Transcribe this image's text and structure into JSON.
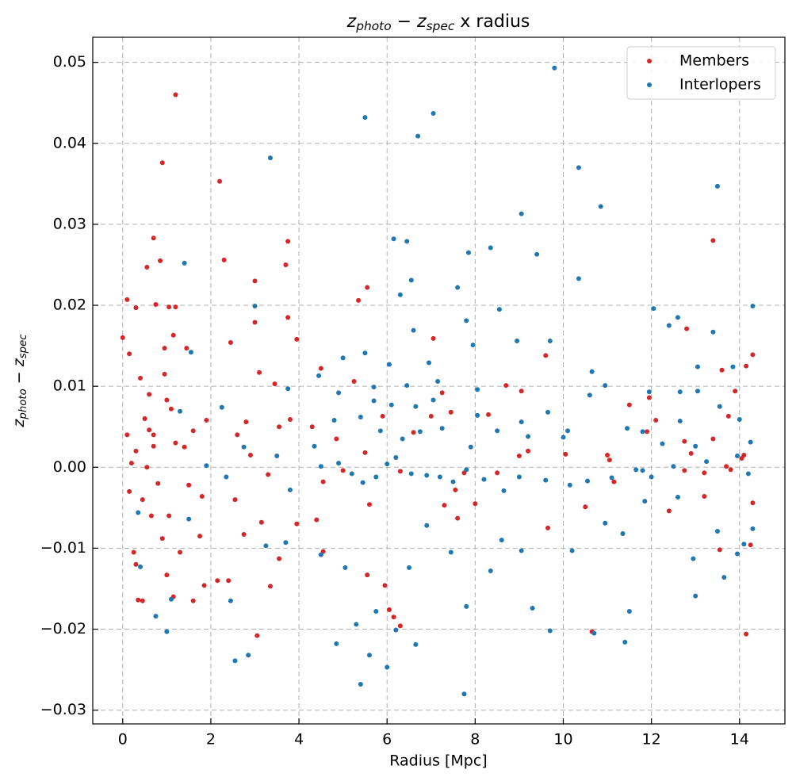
{
  "chart_data": {
    "type": "scatter",
    "title": [
      "z",
      "photo",
      " − ",
      "z",
      "spec",
      " x radius"
    ],
    "x_label": "Radius [Mpc]",
    "y_label": [
      "z",
      "photo",
      " − ",
      "z",
      "spec"
    ],
    "xlim": [
      -0.68,
      15.03
    ],
    "ylim": [
      -0.0317,
      0.0531
    ],
    "xticks": [
      0,
      2,
      4,
      6,
      8,
      10,
      12,
      14
    ],
    "yticks": [
      {
        "value": -0.03,
        "label": "−0.03"
      },
      {
        "value": -0.02,
        "label": "−0.02"
      },
      {
        "value": -0.01,
        "label": "−0.01"
      },
      {
        "value": 0,
        "label": "0.00"
      },
      0.01,
      0.02,
      0.03,
      0.04,
      0.05
    ],
    "grid": true,
    "legend": "upper right",
    "series": [
      {
        "name": "Members",
        "color": "#d62728",
        "x": [
          0.0,
          0.1,
          0.15,
          1.2,
          0.9,
          2.2,
          0.7,
          0.85,
          2.3,
          0.55,
          3.0,
          3.75,
          3.7,
          1.2,
          1.05,
          0.3,
          0.75,
          5.35,
          5.55,
          3.75,
          3.0,
          3.95,
          0.95,
          1.15,
          1.45,
          2.45,
          7.05,
          13.4,
          12.8,
          13.6,
          14.15,
          14.3,
          9.05,
          8.7,
          11.5,
          12.75,
          9.6,
          0.4,
          0.6,
          0.5,
          0.7,
          0.3,
          0.55,
          0.8,
          0.45,
          0.65,
          0.9,
          0.25,
          0.35,
          0.45,
          0.3,
          1.0,
          1.15,
          1.05,
          1.3,
          1.2,
          1.4,
          1.6,
          1.5,
          1.75,
          1.85,
          1.6,
          1.9,
          1.8,
          1.0,
          0.95,
          0.1,
          0.2,
          0.15,
          0.7,
          0.6,
          1.1,
          2.6,
          2.8,
          2.9,
          2.55,
          2.4,
          2.75,
          3.05,
          2.15,
          3.1,
          3.3,
          3.45,
          3.55,
          3.8,
          3.95,
          3.35,
          3.55,
          3.15,
          4.5,
          4.3,
          4.55,
          4.4,
          4.55,
          4.85,
          5.0,
          5.25,
          5.5,
          5.6,
          5.55,
          5.95,
          6.05,
          6.15,
          6.3,
          5.9,
          6.6,
          6.3,
          7.0,
          7.25,
          7.45,
          7.55,
          7.3,
          7.6,
          7.75,
          8.0,
          8.3,
          8.5,
          9.0,
          9.2,
          9.65,
          10.05,
          10.5,
          10.65,
          11.0,
          11.15,
          11.9,
          12.1,
          11.95,
          12.4,
          12.75,
          13.2,
          13.4,
          13.55,
          13.7,
          13.8,
          14.05,
          14.15,
          14.25,
          14.3,
          13.9,
          13.75,
          14.1,
          13.2,
          12.9,
          11.05
        ],
        "values": [
          0.016,
          0.0207,
          0.014,
          0.046,
          0.0376,
          0.0353,
          0.0283,
          0.0255,
          0.0256,
          0.0247,
          0.023,
          0.0279,
          0.025,
          0.0198,
          0.0198,
          0.0197,
          0.0201,
          0.0206,
          0.0222,
          0.0185,
          0.0179,
          0.0158,
          0.0147,
          0.0163,
          0.0147,
          0.0154,
          0.0159,
          0.028,
          0.0171,
          0.012,
          0.0125,
          0.0139,
          0.0094,
          0.0101,
          0.0077,
          0.0032,
          0.0138,
          0.011,
          0.009,
          0.006,
          0.004,
          0.002,
          0.0,
          -0.002,
          -0.004,
          -0.006,
          -0.0088,
          -0.0105,
          -0.0164,
          -0.0165,
          -0.012,
          -0.0133,
          -0.016,
          -0.006,
          -0.0105,
          0.003,
          0.0025,
          0.0045,
          -0.0022,
          -0.0085,
          -0.0146,
          -0.0165,
          0.0058,
          -0.0036,
          0.0083,
          0.0115,
          0.004,
          0.0005,
          -0.003,
          0.0026,
          0.0046,
          0.0072,
          0.004,
          0.0056,
          0.0015,
          -0.004,
          -0.014,
          -0.0083,
          -0.0208,
          -0.014,
          0.0117,
          -0.0009,
          0.0103,
          0.005,
          0.0059,
          -0.007,
          -0.0147,
          -0.0113,
          -0.0068,
          0.0122,
          0.005,
          -0.0018,
          -0.0065,
          -0.0104,
          0.0035,
          -0.0004,
          0.0106,
          0.0018,
          -0.0046,
          -0.0133,
          -0.0146,
          -0.0176,
          -0.0185,
          -0.0196,
          0.0063,
          0.0043,
          -0.0005,
          0.0063,
          0.0092,
          0.0068,
          -0.0028,
          -0.0047,
          -0.0063,
          -0.0007,
          -0.0045,
          0.0065,
          -0.0007,
          0.0014,
          0.002,
          -0.0075,
          0.0016,
          -0.0049,
          -0.0203,
          0.0015,
          -0.0018,
          0.0044,
          0.0058,
          0.0086,
          -0.0054,
          -0.0004,
          -0.0036,
          0.0035,
          -0.0102,
          0.0001,
          -0.0003,
          0.0011,
          -0.0206,
          -0.0096,
          -0.0044,
          0.0094,
          0.0063,
          0.0015,
          -0.0007,
          0.0017,
          0.0009
        ]
      },
      {
        "name": "Interlopers",
        "color": "#1f77b4",
        "x": [
          9.8,
          5.5,
          7.05,
          6.7,
          3.35,
          10.35,
          13.5,
          10.85,
          9.05,
          6.15,
          6.45,
          9.4,
          8.35,
          7.85,
          1.4,
          10.35,
          6.55,
          7.6,
          6.3,
          12.05,
          14.3,
          3.0,
          8.55,
          12.6,
          12.4,
          6.6,
          9.7,
          8.95,
          7.95,
          13.4,
          7.8,
          1.55,
          5.5,
          5.0,
          13.05,
          13.85,
          10.65,
          6.95,
          6.05,
          4.45,
          7.15,
          5.7,
          3.75,
          10.95,
          6.45,
          8.05,
          11.95,
          13.05,
          12.65,
          4.9,
          5.7,
          7.05,
          8.05,
          6.65,
          6.1,
          9.05,
          9.65,
          10.6,
          13.55,
          14.0,
          2.25,
          1.3,
          4.35,
          4.8,
          5.4,
          5.85,
          6.35,
          6.75,
          7.25,
          7.9,
          8.5,
          9.2,
          10.0,
          10.1,
          11.45,
          11.8,
          12.65,
          13.0,
          14.25,
          4.5,
          4.9,
          5.2,
          5.45,
          5.75,
          6.0,
          6.2,
          6.55,
          6.9,
          7.2,
          7.5,
          7.8,
          8.2,
          8.65,
          9.0,
          9.6,
          10.15,
          10.55,
          11.1,
          11.65,
          12.0,
          12.5,
          13.25,
          13.95,
          14.2,
          3.8,
          3.5,
          2.75,
          2.35,
          1.9,
          0.35,
          0.4,
          0.75,
          1.0,
          1.1,
          1.5,
          2.45,
          2.55,
          2.85,
          3.25,
          3.7,
          4.5,
          4.85,
          5.05,
          5.3,
          5.4,
          5.6,
          5.75,
          6.0,
          6.2,
          6.5,
          6.65,
          6.9,
          7.45,
          7.75,
          7.8,
          8.35,
          8.6,
          9.05,
          9.3,
          9.7,
          10.2,
          10.7,
          11.4,
          11.5,
          11.35,
          10.95,
          11.85,
          12.6,
          12.95,
          13.0,
          13.5,
          13.65,
          13.95,
          14.1,
          14.3,
          11.8,
          12.25
        ],
        "values": [
          0.0493,
          0.0432,
          0.0437,
          0.0409,
          0.0382,
          0.037,
          0.0347,
          0.0322,
          0.0313,
          0.0282,
          0.0279,
          0.0263,
          0.0271,
          0.0265,
          0.0252,
          0.0233,
          0.0231,
          0.0222,
          0.0213,
          0.0196,
          0.0199,
          0.0199,
          0.0195,
          0.0185,
          0.0175,
          0.0169,
          0.0156,
          0.0156,
          0.0151,
          0.0167,
          0.0181,
          0.0142,
          0.0141,
          0.0135,
          0.0124,
          0.0124,
          0.0118,
          0.0129,
          0.0127,
          0.0113,
          0.0106,
          0.0099,
          0.0097,
          0.0101,
          0.0101,
          0.0096,
          0.0093,
          0.0094,
          0.0093,
          0.0092,
          0.0082,
          0.0083,
          0.0064,
          0.0075,
          0.0077,
          0.0056,
          0.0068,
          0.0089,
          0.0075,
          0.0059,
          0.0074,
          0.0069,
          0.0026,
          0.0058,
          0.0062,
          0.0045,
          0.0035,
          0.0044,
          0.0048,
          0.0025,
          0.0045,
          0.0038,
          0.0037,
          0.0045,
          0.0048,
          0.0044,
          0.0057,
          0.0026,
          0.0031,
          0.0001,
          0.0005,
          -0.0008,
          -0.0019,
          -0.0012,
          0.0004,
          0.0012,
          -0.0008,
          -0.001,
          -0.0012,
          -0.0018,
          -0.0003,
          -0.0015,
          -0.0029,
          -0.0012,
          -0.0016,
          -0.0022,
          -0.0017,
          -0.0013,
          -0.0003,
          -0.0012,
          0.0001,
          0.0007,
          0.0014,
          -0.0008,
          -0.0028,
          0.0014,
          0.0025,
          -0.0012,
          0.0002,
          -0.0056,
          -0.0123,
          -0.0184,
          -0.0203,
          -0.0163,
          -0.0064,
          -0.0165,
          -0.0239,
          -0.0232,
          -0.0097,
          -0.0093,
          -0.0108,
          -0.0218,
          -0.0124,
          -0.0194,
          -0.0268,
          -0.0232,
          -0.0178,
          -0.0247,
          -0.0201,
          -0.0124,
          -0.0219,
          -0.0072,
          -0.0105,
          -0.028,
          -0.0172,
          -0.0128,
          -0.009,
          -0.0103,
          -0.0174,
          -0.0202,
          -0.0103,
          -0.0205,
          -0.0216,
          -0.0178,
          -0.0082,
          -0.0069,
          -0.0042,
          -0.0037,
          -0.0113,
          -0.0159,
          -0.0079,
          -0.0136,
          -0.0107,
          -0.0095,
          -0.0076,
          -0.0004,
          0.0029
        ]
      }
    ]
  }
}
